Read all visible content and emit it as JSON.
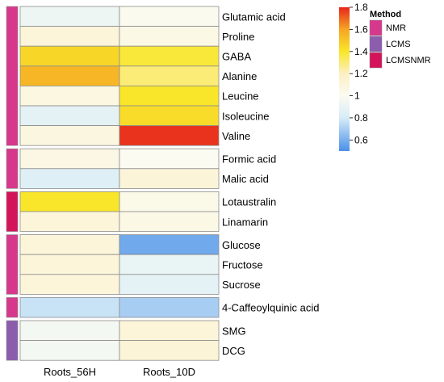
{
  "chart_data": {
    "type": "heatmap",
    "columns": [
      "Roots_56H",
      "Roots_10D"
    ],
    "groups": [
      {
        "method": "NMR",
        "rows": [
          {
            "label": "Glutamic acid",
            "values": [
              0.93,
              1.01
            ]
          },
          {
            "label": "Proline",
            "values": [
              1.1,
              1.05
            ]
          },
          {
            "label": "GABA",
            "values": [
              1.45,
              1.38
            ]
          },
          {
            "label": "Alanine",
            "values": [
              1.55,
              1.3
            ]
          },
          {
            "label": "Leucine",
            "values": [
              1.07,
              1.4
            ]
          },
          {
            "label": "Isoleucine",
            "values": [
              0.87,
              1.43
            ]
          },
          {
            "label": "Valine",
            "values": [
              1.08,
              1.78
            ]
          }
        ]
      },
      {
        "method": "NMR",
        "rows": [
          {
            "label": "Formic acid",
            "values": [
              1.06,
              1.0
            ]
          },
          {
            "label": "Malic acid",
            "values": [
              0.84,
              1.11
            ]
          }
        ]
      },
      {
        "method": "LCMSNMR",
        "rows": [
          {
            "label": "Lotaustralin",
            "values": [
              1.4,
              1.04
            ]
          },
          {
            "label": "Linamarin",
            "values": [
              1.1,
              1.05
            ]
          }
        ]
      },
      {
        "method": "NMR",
        "rows": [
          {
            "label": "Glucose",
            "values": [
              1.1,
              0.58
            ]
          },
          {
            "label": "Fructose",
            "values": [
              1.1,
              0.9
            ]
          },
          {
            "label": "Sucrose",
            "values": [
              1.1,
              0.88
            ]
          }
        ]
      },
      {
        "method": "NMR",
        "rows": [
          {
            "label": "4-Caffeoylquinic acid",
            "values": [
              0.77,
              0.7
            ]
          }
        ]
      },
      {
        "method": "LCMS",
        "rows": [
          {
            "label": "SMG",
            "values": [
              0.96,
              1.1
            ]
          },
          {
            "label": "DCG",
            "values": [
              0.96,
              1.12
            ]
          }
        ]
      }
    ],
    "colorbar": {
      "min": 0.5,
      "max": 1.8,
      "ticks": [
        "0.6",
        "0.8",
        "1",
        "1.2",
        "1.4",
        "1.6",
        "1.8"
      ],
      "stops": [
        {
          "v": 0.5,
          "color": "#4a90e8"
        },
        {
          "v": 0.8,
          "color": "#d7ecf7"
        },
        {
          "v": 1.0,
          "color": "#fbfbf1"
        },
        {
          "v": 1.2,
          "color": "#fcefc4"
        },
        {
          "v": 1.4,
          "color": "#f9e62a"
        },
        {
          "v": 1.6,
          "color": "#f5a623"
        },
        {
          "v": 1.8,
          "color": "#e8261b"
        }
      ]
    },
    "legend": {
      "title": "Method",
      "entries": [
        {
          "name": "NMR",
          "color": "#d6388c"
        },
        {
          "name": "LCMS",
          "color": "#8c5cad"
        },
        {
          "name": "LCMSNMR",
          "color": "#d4145a"
        }
      ]
    }
  }
}
